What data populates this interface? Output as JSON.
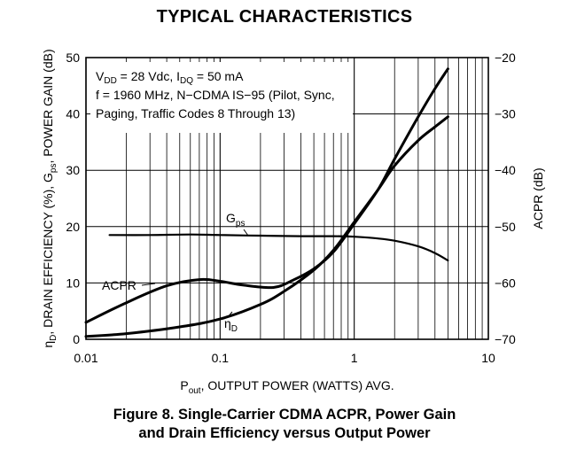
{
  "header": "TYPICAL CHARACTERISTICS",
  "caption": {
    "line1": "Figure 8. Single-Carrier CDMA ACPR, Power Gain",
    "line2": "and Drain Efficiency versus Output Power"
  },
  "chart_data": {
    "type": "line",
    "xscale": "log",
    "xlim": [
      0.01,
      10
    ],
    "ylim": [
      0,
      50
    ],
    "y2lim": [
      -70,
      -20
    ],
    "x_ticks": [
      0.01,
      0.1,
      1,
      10
    ],
    "x_tick_labels": [
      "0.01",
      "0.1",
      "1",
      "10"
    ],
    "y_ticks": [
      0,
      10,
      20,
      30,
      40,
      50
    ],
    "y2_ticks": [
      -70,
      -60,
      -50,
      -40,
      -30,
      -20
    ],
    "xlabel": {
      "main": "P",
      "sub": "out",
      "rest": ", OUTPUT POWER (WATTS) AVG."
    },
    "ylabel": {
      "p1": "η",
      "s1": "D",
      "p2": ", DRAIN EFFICIENCY (%), G",
      "s2": "ps",
      "p3": ", POWER GAIN (dB)"
    },
    "y2label": "ACPR (dB)",
    "grid": true,
    "annotation": {
      "line1": {
        "a": "V",
        "as": "DD",
        "b": " = 28 Vdc, I",
        "bs": "DQ",
        "c": " = 50 mA"
      },
      "line2": "f = 1960 MHz, N−CDMA IS−95 (Pilot, Sync,",
      "line3": "Paging, Traffic Codes 8 Through 13)"
    },
    "series": [
      {
        "axis": "left",
        "label": {
          "main": "G",
          "sub": "ps"
        },
        "x": [
          0.015,
          0.03,
          0.06,
          0.1,
          0.2,
          0.4,
          0.7,
          1.0,
          1.5,
          2.0,
          3.0,
          4.0,
          5.0
        ],
        "y": [
          18.5,
          18.5,
          18.6,
          18.5,
          18.4,
          18.3,
          18.3,
          18.2,
          17.9,
          17.5,
          16.5,
          15.3,
          14.0
        ]
      },
      {
        "axis": "left",
        "label": {
          "main": "η",
          "sub": "D"
        },
        "x": [
          0.01,
          0.02,
          0.05,
          0.1,
          0.2,
          0.3,
          0.5,
          0.7,
          1.0,
          1.5,
          2.0,
          3.0,
          4.0,
          5.0
        ],
        "y": [
          0.5,
          1.0,
          2.2,
          3.6,
          6.2,
          8.5,
          12.3,
          15.8,
          20.8,
          26.5,
          30.8,
          35.3,
          37.7,
          39.5
        ]
      },
      {
        "axis": "right",
        "label": {
          "main": "ACPR"
        },
        "x": [
          0.01,
          0.02,
          0.04,
          0.07,
          0.1,
          0.15,
          0.25,
          0.35,
          0.5,
          0.7,
          1.0,
          1.5,
          2.0,
          3.0,
          4.0,
          5.0
        ],
        "y": [
          -67.0,
          -63.5,
          -60.5,
          -59.4,
          -59.7,
          -60.4,
          -60.8,
          -59.5,
          -57.5,
          -54.5,
          -49.5,
          -43.5,
          -38.0,
          -30.5,
          -25.5,
          -22.0
        ]
      }
    ]
  }
}
